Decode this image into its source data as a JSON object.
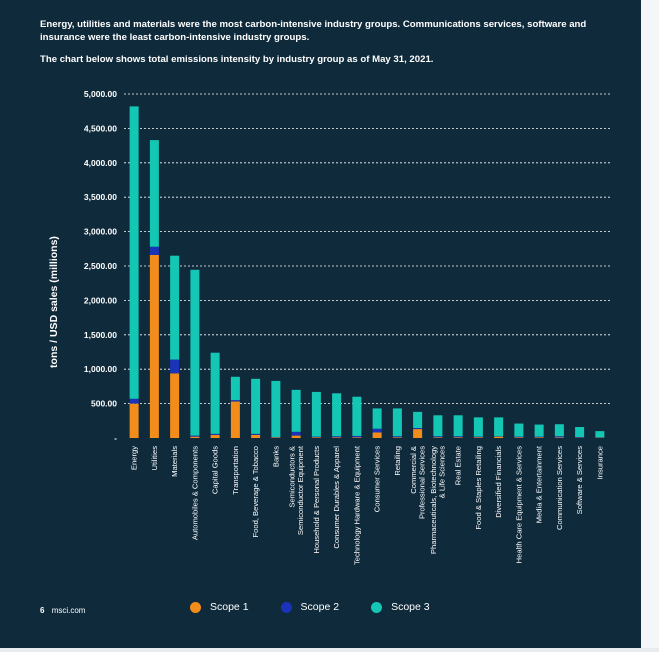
{
  "intro": {
    "line1": "Energy, utilities and materials were the most carbon-intensive industry groups. Communications services, software and insurance were the least carbon-intensive industry groups.",
    "line2": "The chart below shows total emissions intensity by industry group as of May 31, 2021."
  },
  "footer": {
    "page": "6",
    "site": "msci.com"
  },
  "colors": {
    "scope1": "#f28c1b",
    "scope2": "#1a33b8",
    "scope3": "#14c7b4",
    "grid": "#ffffff",
    "background": "#0f2a3b"
  },
  "chart_data": {
    "type": "bar",
    "stacked": true,
    "ylabel": "tons / USD sales (millions)",
    "ylim": [
      0,
      5000
    ],
    "yticks": [
      0,
      500,
      1000,
      1500,
      2000,
      2500,
      3000,
      3500,
      4000,
      4500,
      5000
    ],
    "ytick_labels": [
      "-",
      "500.00",
      "1,000.00",
      "1,500.00",
      "2,000.00",
      "2,500.00",
      "3,000.00",
      "3,500.00",
      "4,000.00",
      "4,500.00",
      "5,000.00"
    ],
    "grid": true,
    "legend_position": "bottom",
    "categories": [
      "Energy",
      "Utilities",
      "Materials",
      "Automobiles & Components",
      "Capital Goods",
      "Transportation",
      "Food, Beverage & Tobacco",
      "Banks",
      "Semiconductors & Semiconductor Equipment",
      "Household & Personal Products",
      "Consumer Durables & Apparel",
      "Technology Hardware & Equipment",
      "Consumer Services",
      "Retailing",
      "Commercial & Professional Services",
      "Pharmaceuticals, Biotechnology & Life Sciences",
      "Real Estate",
      "Food & Staples Retailing",
      "Diversified Financials",
      "Health Care Equipment & Services",
      "Media & Entertainment",
      "Communication Services",
      "Software & Services",
      "Insurance"
    ],
    "category_lines": [
      [
        "Energy"
      ],
      [
        "Utilities"
      ],
      [
        "Materials"
      ],
      [
        "Automobiles & Components"
      ],
      [
        "Capital Goods"
      ],
      [
        "Transportation"
      ],
      [
        "Food, Beverage & Tobacco"
      ],
      [
        "Banks"
      ],
      [
        "Semiconductors &",
        "Semiconductor Equipment"
      ],
      [
        "Household & Personal Products"
      ],
      [
        "Consumer Durables & Apparel"
      ],
      [
        "Technology Hardware & Equipment"
      ],
      [
        "Consumer Services"
      ],
      [
        "Retailing"
      ],
      [
        "Commercial &",
        "Professional Services"
      ],
      [
        "Pharmaceuticals, Biotechnology",
        "& Life Sciences"
      ],
      [
        "Real Estate"
      ],
      [
        "Food & Staples Retailing"
      ],
      [
        "Diversified Financials"
      ],
      [
        "Health Care Equipment & Services"
      ],
      [
        "Media & Entertainment"
      ],
      [
        "Communication Services"
      ],
      [
        "Software & Services"
      ],
      [
        "Insurance"
      ]
    ],
    "series": [
      {
        "name": "Scope 1",
        "color": "#f28c1b",
        "values": [
          500,
          2660,
          940,
          20,
          45,
          530,
          45,
          10,
          35,
          10,
          10,
          10,
          80,
          10,
          130,
          10,
          10,
          10,
          20,
          10,
          10,
          10,
          5,
          5
        ]
      },
      {
        "name": "Scope 2",
        "color": "#1a33b8",
        "values": [
          70,
          120,
          200,
          15,
          15,
          20,
          15,
          5,
          55,
          10,
          15,
          20,
          55,
          15,
          15,
          15,
          15,
          10,
          5,
          10,
          10,
          15,
          10,
          5
        ]
      },
      {
        "name": "Scope 3",
        "color": "#14c7b4",
        "values": [
          4250,
          1550,
          1510,
          2410,
          1180,
          340,
          800,
          815,
          610,
          650,
          625,
          570,
          295,
          405,
          235,
          305,
          305,
          280,
          275,
          190,
          175,
          175,
          145,
          90
        ]
      }
    ]
  }
}
